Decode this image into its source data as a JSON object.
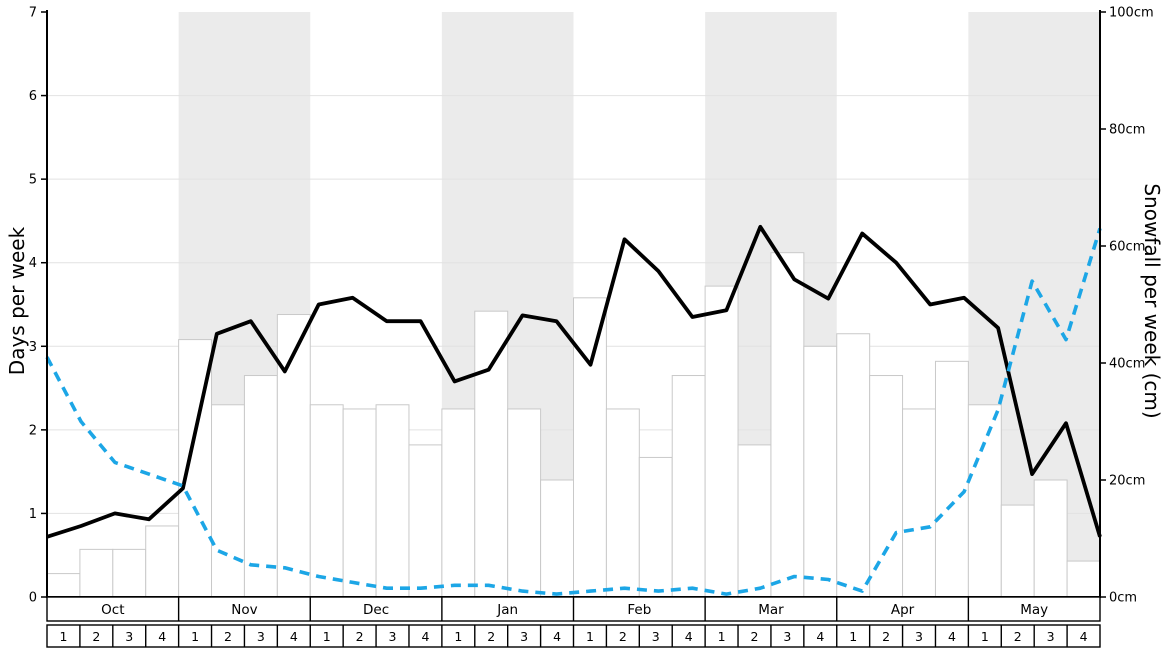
{
  "chart_data": {
    "type": "line",
    "title": "",
    "x_axis": {
      "months": [
        "Oct",
        "Nov",
        "Dec",
        "Jan",
        "Feb",
        "Mar",
        "Apr",
        "May"
      ],
      "week_labels": [
        "1",
        "2",
        "3",
        "4"
      ],
      "weeks_per_month": 4
    },
    "left_axis": {
      "label": "Days per week",
      "min": 0,
      "max": 7,
      "ticks": [
        0,
        1,
        2,
        3,
        4,
        5,
        6,
        7
      ]
    },
    "right_axis": {
      "label": "Snowfall per week (cm)",
      "min": 0,
      "max": 100,
      "ticks": [
        {
          "value": 0,
          "label": "0cm"
        },
        {
          "value": 20,
          "label": "20cm"
        },
        {
          "value": 40,
          "label": "40cm"
        },
        {
          "value": 60,
          "label": "60cm"
        },
        {
          "value": 80,
          "label": "80cm"
        },
        {
          "value": 100,
          "label": "100cm"
        }
      ]
    },
    "series": [
      {
        "id": "days-per-week-line",
        "type": "line",
        "axis": "left",
        "color": "#000000",
        "dash": null,
        "width": 3.8,
        "values": [
          0.72,
          0.85,
          1.0,
          0.93,
          1.3,
          3.15,
          3.3,
          2.7,
          3.5,
          3.58,
          3.3,
          3.3,
          2.58,
          2.72,
          3.37,
          3.3,
          2.78,
          4.28,
          3.9,
          3.35,
          3.43,
          4.43,
          3.8,
          3.57,
          4.35,
          4.0,
          3.5,
          3.58,
          3.22,
          1.47,
          2.08,
          0.72
        ]
      },
      {
        "id": "snowfall-per-week-line",
        "type": "line",
        "axis": "right",
        "color": "#1ca6e6",
        "dash": [
          10,
          7
        ],
        "width": 3.6,
        "values": [
          41,
          30,
          23,
          21,
          19,
          8,
          5.5,
          5,
          3.5,
          2.5,
          1.5,
          1.5,
          2,
          2,
          1,
          0.5,
          1,
          1.5,
          1,
          1.5,
          0.5,
          1.5,
          3.5,
          3,
          1,
          11,
          12,
          18,
          32,
          54,
          44,
          63
        ]
      },
      {
        "id": "weekly-bars",
        "type": "bar",
        "axis": "left",
        "fill": "#ffffff",
        "stroke": "#c9c9c9",
        "values": [
          0.28,
          0.57,
          0.57,
          0.85,
          3.08,
          2.3,
          2.65,
          3.38,
          2.3,
          2.25,
          2.3,
          1.82,
          2.25,
          3.42,
          2.25,
          1.4,
          3.58,
          2.25,
          1.67,
          2.65,
          3.72,
          1.82,
          4.12,
          3.0,
          3.15,
          2.65,
          2.25,
          2.82,
          2.3,
          1.1,
          1.4,
          0.43
        ]
      }
    ],
    "background": {
      "band_color": "#ebebeb",
      "shaded_month_indices": [
        1,
        3,
        5,
        7
      ]
    },
    "gridlines": {
      "color": "#e2e2e2",
      "values": [
        1,
        2,
        3,
        4,
        5,
        6
      ]
    }
  }
}
